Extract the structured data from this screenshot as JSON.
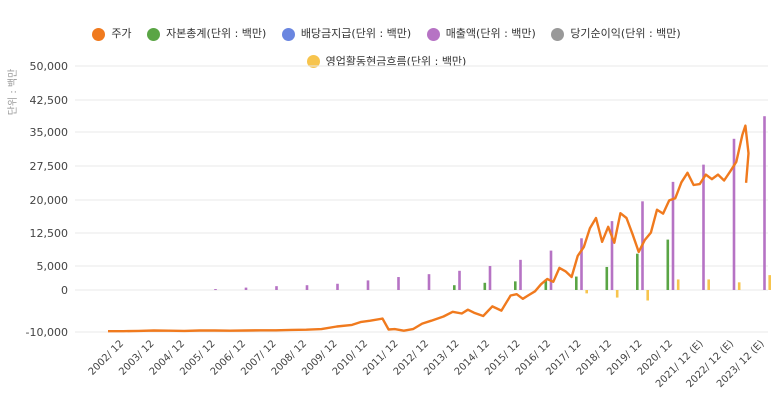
{
  "chart_data": {
    "type": "bar",
    "ylabel": "단위 : 백만",
    "ylim": [
      -10000,
      50000
    ],
    "yticks": [
      -10000,
      0,
      5000,
      12500,
      20000,
      27500,
      35000,
      42500,
      50000
    ],
    "ytick_labels": [
      "-10,000",
      "0",
      "5,000",
      "12,500",
      "20,000",
      "27,500",
      "35,000",
      "42,500",
      "50,000"
    ],
    "categories": [
      "2002/ 12",
      "2003/ 12",
      "2004/ 12",
      "2005/ 12",
      "2006/ 12",
      "2007/ 12",
      "2008/ 12",
      "2009/ 12",
      "2010/ 12",
      "2011/ 12",
      "2012/ 12",
      "2013/ 12",
      "2014/ 12",
      "2015/ 12",
      "2016/ 12",
      "2017/ 12",
      "2018/ 12",
      "2019/ 12",
      "2020/ 12",
      "2021/ 12 (E)",
      "2022/ 12 (E)",
      "2023/ 12 (E)"
    ],
    "legend_position": "top",
    "series": [
      {
        "name": "주가",
        "type": "line",
        "color": "#f07a1e",
        "x": [
          0.0,
          0.5,
          1.0,
          1.5,
          2.0,
          2.5,
          3.0,
          3.5,
          4.0,
          4.5,
          5.0,
          5.5,
          6.0,
          6.5,
          7.0,
          7.5,
          8.0,
          8.3,
          8.6,
          9.0,
          9.2,
          9.4,
          9.7,
          10.0,
          10.3,
          10.6,
          11.0,
          11.3,
          11.6,
          11.8,
          12.0,
          12.3,
          12.6,
          12.9,
          13.2,
          13.4,
          13.6,
          13.8,
          14.0,
          14.2,
          14.4,
          14.6,
          14.8,
          15.0,
          15.2,
          15.4,
          15.6,
          15.8,
          16.0,
          16.2,
          16.4,
          16.6,
          16.8,
          17.0,
          17.2,
          17.4,
          17.6,
          17.8,
          18.0,
          18.2,
          18.4,
          18.6,
          18.8,
          19.0,
          19.2,
          19.4,
          19.6,
          19.8,
          20.0,
          20.2,
          20.4,
          20.6,
          20.8,
          20.9,
          21.0
        ],
        "values": [
          -9800,
          -9800,
          -9750,
          -9650,
          -9700,
          -9750,
          -9650,
          -9650,
          -9700,
          -9650,
          -9600,
          -9600,
          -9500,
          -9450,
          -9300,
          -8700,
          -8300,
          -7600,
          -7300,
          -6800,
          -9400,
          -9300,
          -9700,
          -9300,
          -8000,
          -7300,
          -6300,
          -5200,
          -5600,
          -4700,
          -5400,
          -6200,
          -3900,
          -4900,
          -1300,
          -1000,
          -2100,
          -1200,
          -300,
          1200,
          2300,
          1700,
          4600,
          3900,
          2700,
          7300,
          9300,
          13600,
          15900,
          10500,
          13900,
          10300,
          17000,
          15900,
          12200,
          8200,
          10900,
          12600,
          17800,
          16900,
          19900,
          20400,
          23900,
          26000,
          23300,
          23500,
          25600,
          24600,
          25600,
          24300,
          26300,
          28400,
          34400,
          36500,
          30300
        ],
        "values_tail": [
          23800
        ]
      },
      {
        "name": "자본총계(단위 : 백만)",
        "color": "#5aa545",
        "values": [
          0,
          0,
          0,
          0,
          0,
          0,
          0,
          0,
          0,
          0,
          0,
          1000,
          1500,
          1800,
          2200,
          2800,
          4800,
          7800,
          11000,
          null,
          null,
          null
        ]
      },
      {
        "name": "배당금지급(단위 : 백만)",
        "color": "#6a86e0",
        "values": [
          0,
          0,
          0,
          0,
          0,
          0,
          0,
          0,
          0,
          0,
          0,
          0,
          0,
          0,
          0,
          0,
          0,
          0,
          0,
          null,
          null,
          null
        ]
      },
      {
        "name": "매출액(단위 : 백만)",
        "color": "#b673c4",
        "values": [
          0,
          0,
          0,
          200,
          500,
          800,
          1000,
          1300,
          2000,
          2700,
          3300,
          4000,
          5000,
          6400,
          8500,
          11300,
          15200,
          19700,
          24000,
          27800,
          33500,
          38700
        ]
      },
      {
        "name": "당기순이익(단위 : 백만)",
        "color": "#999999",
        "values": [
          0,
          0,
          0,
          0,
          0,
          0,
          0,
          0,
          0,
          0,
          0,
          0,
          0,
          0,
          0,
          0,
          0,
          0,
          0,
          0,
          0,
          0
        ]
      },
      {
        "name": "영업활동현금흐름(단위 : 백만)",
        "color": "#f7c44d",
        "values": [
          0,
          0,
          0,
          0,
          0,
          0,
          0,
          0,
          0,
          0,
          0,
          0,
          0,
          0,
          0,
          -800,
          -1800,
          -2500,
          2200,
          2200,
          1600,
          3100
        ]
      }
    ]
  }
}
